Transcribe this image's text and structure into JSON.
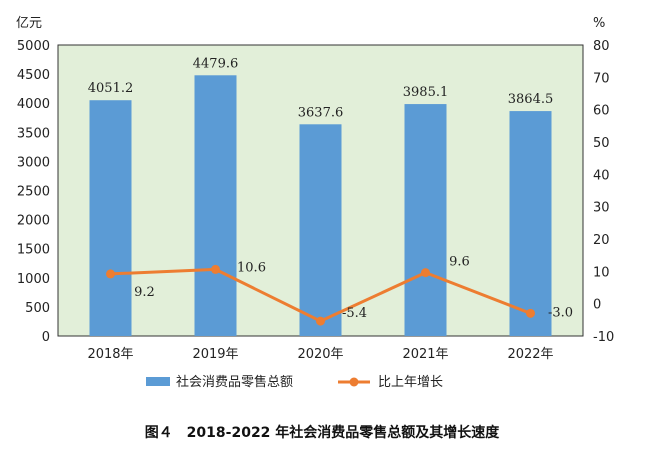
{
  "caption": "图４　2018-2022 年社会消费品零售总额及其增长速度",
  "colors": {
    "plot_bg": "#e2efd9",
    "bar": "#5b9bd5",
    "line": "#ed7d31"
  },
  "chart_data": {
    "type": "bar",
    "categories": [
      "2018年",
      "2019年",
      "2020年",
      "2021年",
      "2022年"
    ],
    "series": [
      {
        "name": "社会消费品零售总额",
        "type": "bar",
        "axis": "left",
        "values": [
          4051.2,
          4479.6,
          3637.6,
          3985.1,
          3864.5
        ],
        "labels": [
          "4051.2",
          "4479.6",
          "3637.6",
          "3985.1",
          "3864.5"
        ]
      },
      {
        "name": "比上年增长",
        "type": "line",
        "axis": "right",
        "values": [
          9.2,
          10.6,
          -5.4,
          9.6,
          -3.0
        ],
        "labels": [
          "9.2",
          "10.6",
          "-5.4",
          "9.6",
          "-3.0"
        ]
      }
    ],
    "y_left": {
      "unit": "亿元",
      "range": [
        0,
        5000
      ],
      "ticks": [
        "0",
        "500",
        "1000",
        "1500",
        "2000",
        "2500",
        "3000",
        "3500",
        "4000",
        "4500",
        "5000"
      ]
    },
    "y_right": {
      "unit": "%",
      "range": [
        -10,
        80
      ],
      "ticks": [
        "-10",
        "0",
        "10",
        "20",
        "30",
        "40",
        "50",
        "60",
        "70",
        "80"
      ]
    },
    "legend": {
      "position": "bottom",
      "items": [
        "社会消费品零售总额",
        "比上年增长"
      ]
    },
    "grid": false
  }
}
